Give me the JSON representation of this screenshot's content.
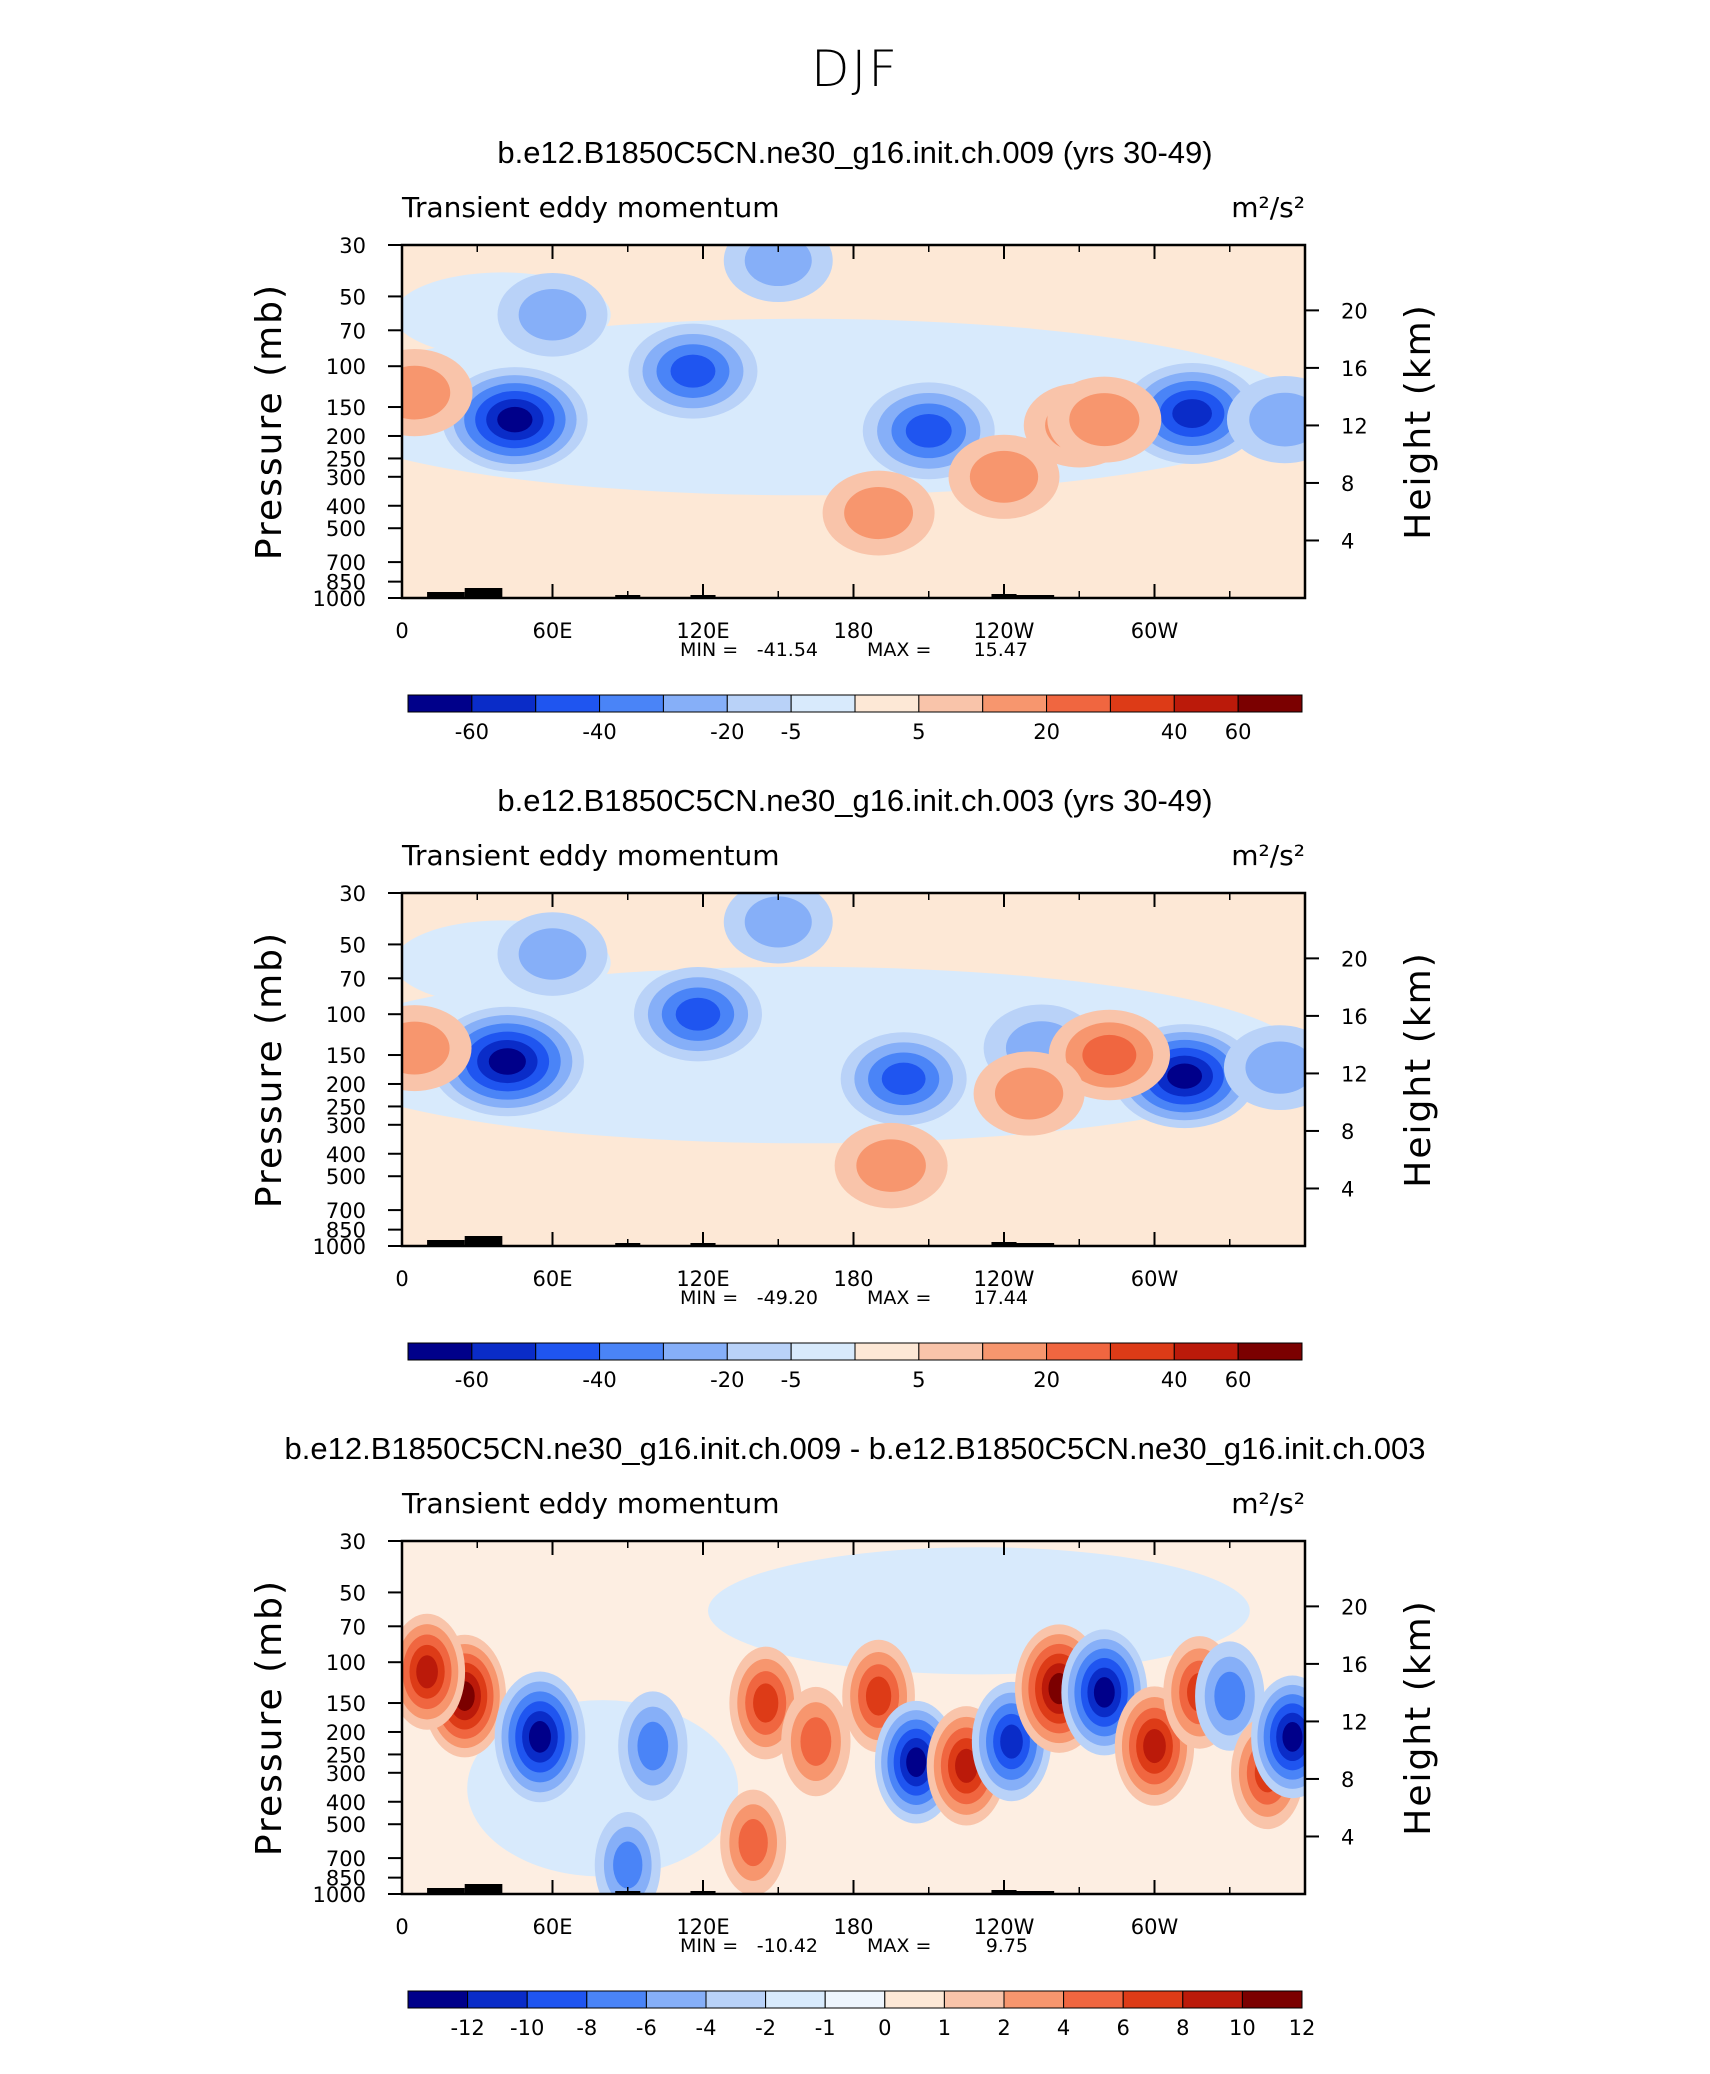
{
  "page_title": "DJF",
  "colors": {
    "neg": [
      "#00008a",
      "#0a2cc8",
      "#1f55f0",
      "#4a84f7",
      "#86aff8",
      "#b9d2f8",
      "#d8eafc"
    ],
    "pos": [
      "#fde8d6",
      "#f9c4aa",
      "#f7966e",
      "#f06640",
      "#dd3b17",
      "#bb1a0a",
      "#7b0000"
    ]
  },
  "chart_data": [
    {
      "type": "heatmap",
      "title": "b.e12.B1850C5CN.ne30_g16.init.ch.009 (yrs 30-49)",
      "left_label": "Transient eddy momentum",
      "units_label": "m²/s²",
      "ylabel": "Pressure (mb)",
      "ylabel_right": "Height (km)",
      "x_ticks": [
        "0",
        "60E",
        "120E",
        "180",
        "120W",
        "60W"
      ],
      "y_ticks": [
        "30",
        "50",
        "70",
        "100",
        "150",
        "200",
        "250",
        "300",
        "400",
        "500",
        "700",
        "850",
        "1000"
      ],
      "y_right_ticks": [
        "20",
        "16",
        "12",
        "8",
        "4"
      ],
      "stats": {
        "min_label": "MIN =",
        "min": "-41.54",
        "max_label": "MAX =",
        "max": "15.47"
      },
      "colorbar_labels": [
        "-60",
        "-40",
        "-20",
        "-5",
        "5",
        "20",
        "40",
        "60"
      ],
      "features": [
        {
          "lon": 45,
          "p": 170,
          "value": -41.5
        },
        {
          "lon": 116,
          "p": 105,
          "value": -25
        },
        {
          "lon": 210,
          "p": 190,
          "value": -28
        },
        {
          "lon": 315,
          "p": 160,
          "value": -35
        },
        {
          "lon": 352,
          "p": 170,
          "value": -12
        },
        {
          "lon": 5,
          "p": 130,
          "value": 12
        },
        {
          "lon": 270,
          "p": 180,
          "value": 7
        },
        {
          "lon": 280,
          "p": 170,
          "value": 10
        },
        {
          "lon": 190,
          "p": 430,
          "value": 8
        },
        {
          "lon": 240,
          "p": 300,
          "value": 7
        },
        {
          "lon": 150,
          "p": 35,
          "value": -5
        },
        {
          "lon": 60,
          "p": 60,
          "value": -6
        }
      ]
    },
    {
      "type": "heatmap",
      "title": "b.e12.B1850C5CN.ne30_g16.init.ch.003 (yrs 30-49)",
      "left_label": "Transient eddy momentum",
      "units_label": "m²/s²",
      "ylabel": "Pressure (mb)",
      "ylabel_right": "Height (km)",
      "x_ticks": [
        "0",
        "60E",
        "120E",
        "180",
        "120W",
        "60W"
      ],
      "y_ticks": [
        "30",
        "50",
        "70",
        "100",
        "150",
        "200",
        "250",
        "300",
        "400",
        "500",
        "700",
        "850",
        "1000"
      ],
      "y_right_ticks": [
        "20",
        "16",
        "12",
        "8",
        "4"
      ],
      "stats": {
        "min_label": "MIN =",
        "min": "-49.20",
        "max_label": "MAX =",
        "max": "17.44"
      },
      "colorbar_labels": [
        "-60",
        "-40",
        "-20",
        "-5",
        "5",
        "20",
        "40",
        "60"
      ],
      "features": [
        {
          "lon": 42,
          "p": 160,
          "value": -49.2
        },
        {
          "lon": 118,
          "p": 100,
          "value": -24
        },
        {
          "lon": 200,
          "p": 190,
          "value": -22
        },
        {
          "lon": 312,
          "p": 185,
          "value": -40
        },
        {
          "lon": 255,
          "p": 140,
          "value": -12
        },
        {
          "lon": 350,
          "p": 170,
          "value": -8
        },
        {
          "lon": 282,
          "p": 150,
          "value": 17.4
        },
        {
          "lon": 5,
          "p": 140,
          "value": 10
        },
        {
          "lon": 195,
          "p": 450,
          "value": 9
        },
        {
          "lon": 250,
          "p": 220,
          "value": 7
        },
        {
          "lon": 150,
          "p": 40,
          "value": -5
        },
        {
          "lon": 60,
          "p": 55,
          "value": -6
        }
      ]
    },
    {
      "type": "heatmap",
      "title": "b.e12.B1850C5CN.ne30_g16.init.ch.009 - b.e12.B1850C5CN.ne30_g16.init.ch.003",
      "left_label": "Transient eddy momentum",
      "units_label": "m²/s²",
      "ylabel": "Pressure (mb)",
      "ylabel_right": "Height (km)",
      "x_ticks": [
        "0",
        "60E",
        "120E",
        "180",
        "120W",
        "60W"
      ],
      "y_ticks": [
        "30",
        "50",
        "70",
        "100",
        "150",
        "200",
        "250",
        "300",
        "400",
        "500",
        "700",
        "850",
        "1000"
      ],
      "y_right_ticks": [
        "20",
        "16",
        "12",
        "8",
        "4"
      ],
      "stats": {
        "min_label": "MIN =",
        "min": "-10.42",
        "max_label": "MAX =",
        "max": "9.75"
      },
      "colorbar_labels": [
        "-12",
        "-10",
        "-8",
        "-6",
        "-4",
        "-2",
        "-1",
        "0",
        "1",
        "2",
        "4",
        "6",
        "8",
        "10",
        "12"
      ],
      "features": [
        {
          "lon": 25,
          "p": 140,
          "value": 8
        },
        {
          "lon": 10,
          "p": 110,
          "value": 6
        },
        {
          "lon": 55,
          "p": 210,
          "value": -10.4
        },
        {
          "lon": 100,
          "p": 230,
          "value": -4
        },
        {
          "lon": 145,
          "p": 150,
          "value": 5
        },
        {
          "lon": 165,
          "p": 220,
          "value": 4
        },
        {
          "lon": 190,
          "p": 140,
          "value": 5
        },
        {
          "lon": 205,
          "p": 270,
          "value": -8
        },
        {
          "lon": 225,
          "p": 280,
          "value": 7
        },
        {
          "lon": 243,
          "p": 220,
          "value": -7
        },
        {
          "lon": 262,
          "p": 130,
          "value": 9.75
        },
        {
          "lon": 280,
          "p": 135,
          "value": -9
        },
        {
          "lon": 300,
          "p": 230,
          "value": 7
        },
        {
          "lon": 318,
          "p": 135,
          "value": 5
        },
        {
          "lon": 330,
          "p": 140,
          "value": -4
        },
        {
          "lon": 345,
          "p": 300,
          "value": 5
        },
        {
          "lon": 355,
          "p": 210,
          "value": -8
        },
        {
          "lon": 90,
          "p": 750,
          "value": -3
        },
        {
          "lon": 140,
          "p": 600,
          "value": 3
        }
      ]
    }
  ]
}
